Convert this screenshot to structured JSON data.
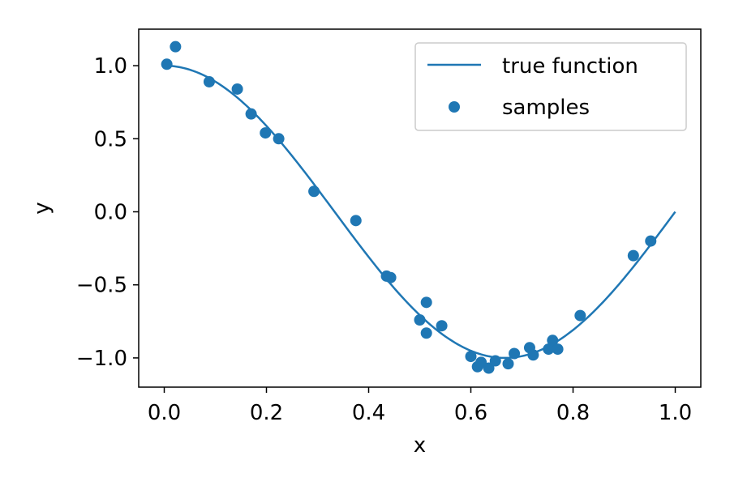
{
  "chart_data": {
    "type": "scatter",
    "xlabel": "x",
    "ylabel": "y",
    "xlim": [
      -0.05,
      1.05
    ],
    "ylim": [
      -1.2,
      1.25
    ],
    "xticks": [
      0.0,
      0.2,
      0.4,
      0.6,
      0.8,
      1.0
    ],
    "xtick_labels": [
      "0.0",
      "0.2",
      "0.4",
      "0.6",
      "0.8",
      "1.0"
    ],
    "yticks": [
      1.0,
      0.5,
      0.0,
      -0.5,
      -1.0
    ],
    "ytick_labels": [
      "1.0",
      "0.5",
      "0.0",
      "−0.5",
      "−1.0"
    ],
    "grid": false,
    "legend_position": "top-right",
    "colors": {
      "series": "#1f77b4",
      "axes": "#000000",
      "legend_border": "#cccccc"
    },
    "series": [
      {
        "name": "true function",
        "kind": "line",
        "function": "cos(1.5*pi*x)",
        "x_range": [
          0.0,
          1.0
        ]
      },
      {
        "name": "samples",
        "kind": "scatter",
        "points": [
          [
            0.005,
            1.01
          ],
          [
            0.022,
            1.13
          ],
          [
            0.088,
            0.89
          ],
          [
            0.143,
            0.84
          ],
          [
            0.17,
            0.67
          ],
          [
            0.198,
            0.54
          ],
          [
            0.224,
            0.5
          ],
          [
            0.293,
            0.14
          ],
          [
            0.375,
            -0.06
          ],
          [
            0.435,
            -0.44
          ],
          [
            0.443,
            -0.45
          ],
          [
            0.5,
            -0.74
          ],
          [
            0.513,
            -0.62
          ],
          [
            0.513,
            -0.83
          ],
          [
            0.543,
            -0.78
          ],
          [
            0.6,
            -0.99
          ],
          [
            0.613,
            -1.06
          ],
          [
            0.62,
            -1.03
          ],
          [
            0.635,
            -1.07
          ],
          [
            0.648,
            -1.02
          ],
          [
            0.673,
            -1.04
          ],
          [
            0.685,
            -0.97
          ],
          [
            0.715,
            -0.93
          ],
          [
            0.722,
            -0.98
          ],
          [
            0.752,
            -0.94
          ],
          [
            0.76,
            -0.88
          ],
          [
            0.77,
            -0.94
          ],
          [
            0.814,
            -0.71
          ],
          [
            0.918,
            -0.3
          ],
          [
            0.952,
            -0.2
          ]
        ]
      }
    ]
  }
}
